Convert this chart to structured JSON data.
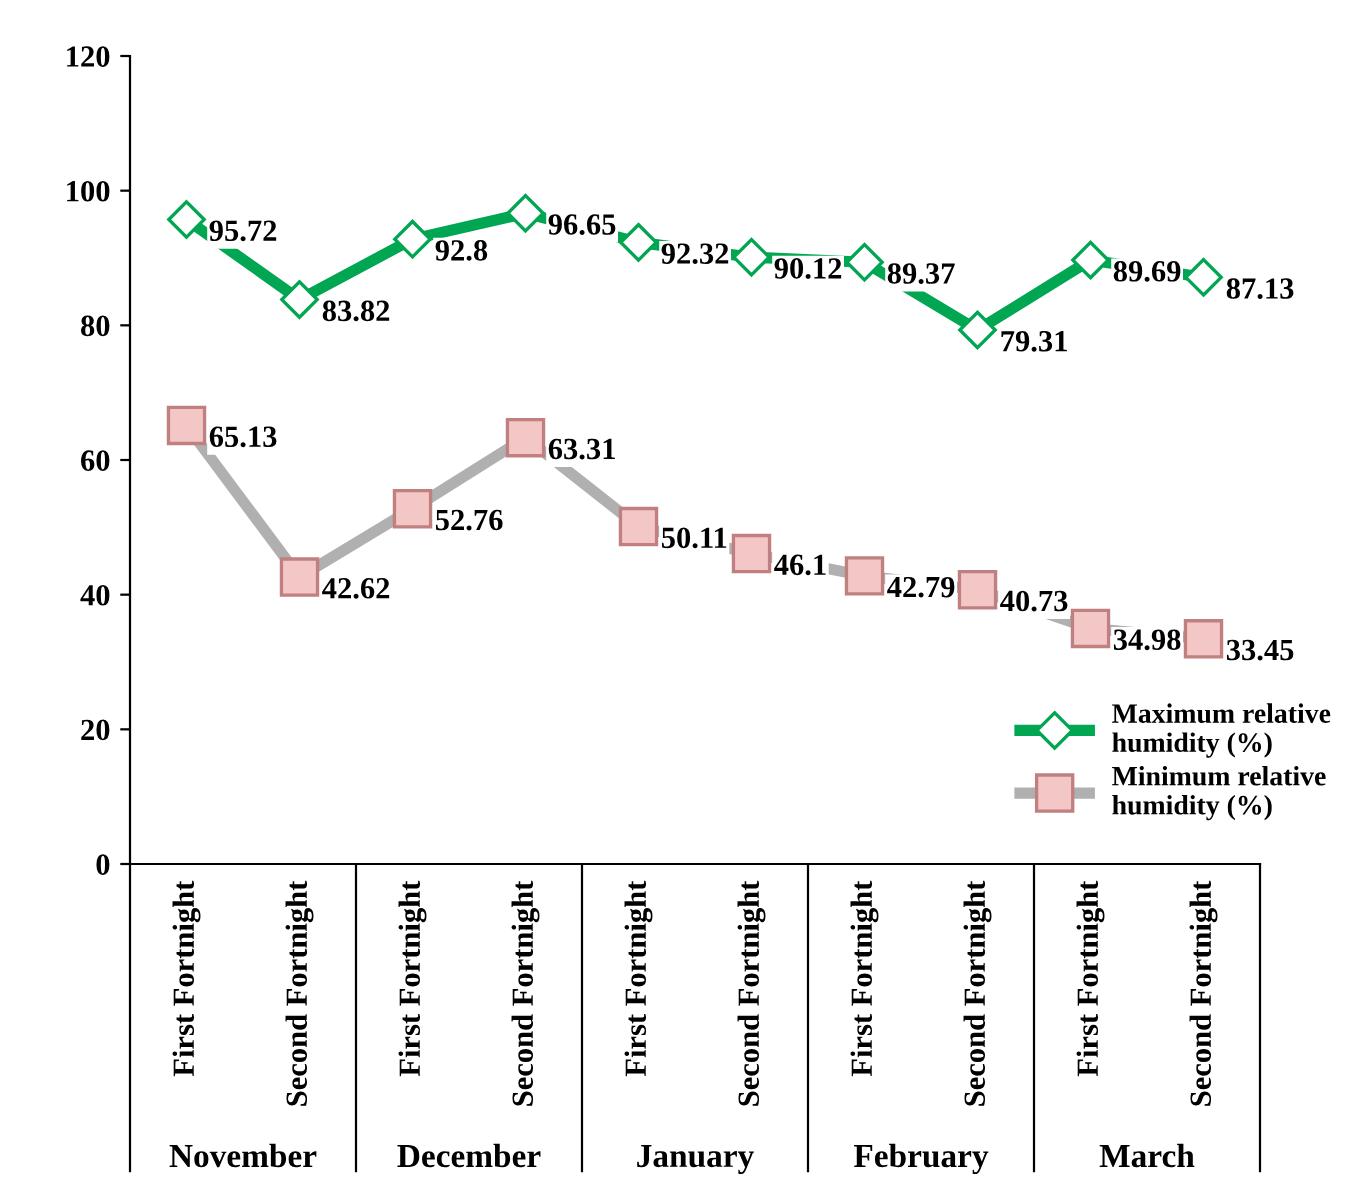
{
  "chart_data": {
    "type": "line",
    "categories": [
      "First Fortnight",
      "Second Fortnight",
      "First Fortnight",
      "Second Fortnight",
      "First Fortnight",
      "Second Fortnight",
      "First Fortnight",
      "Second Fortnight",
      "First Fortnight",
      "Second Fortnight"
    ],
    "annotations": [
      "November",
      "December",
      "January",
      "February",
      "March"
    ],
    "series": [
      {
        "name": "Maximum relative humidity (%)",
        "color": "#00a651",
        "marker": "diamond",
        "values": [
          95.72,
          83.82,
          92.8,
          96.65,
          92.32,
          90.12,
          89.37,
          79.31,
          89.69,
          87.13
        ]
      },
      {
        "name": "Minimum relative humidity (%)",
        "color": "#b0b0b0",
        "marker": "square",
        "values": [
          65.13,
          42.62,
          52.76,
          63.31,
          50.11,
          46.1,
          42.79,
          40.73,
          34.98,
          33.45
        ]
      }
    ],
    "ylim": [
      0,
      120
    ],
    "yticks": [
      0,
      20,
      40,
      60,
      80,
      100,
      120
    ],
    "grid": false,
    "legend": "bottom right",
    "data_labels": true
  }
}
